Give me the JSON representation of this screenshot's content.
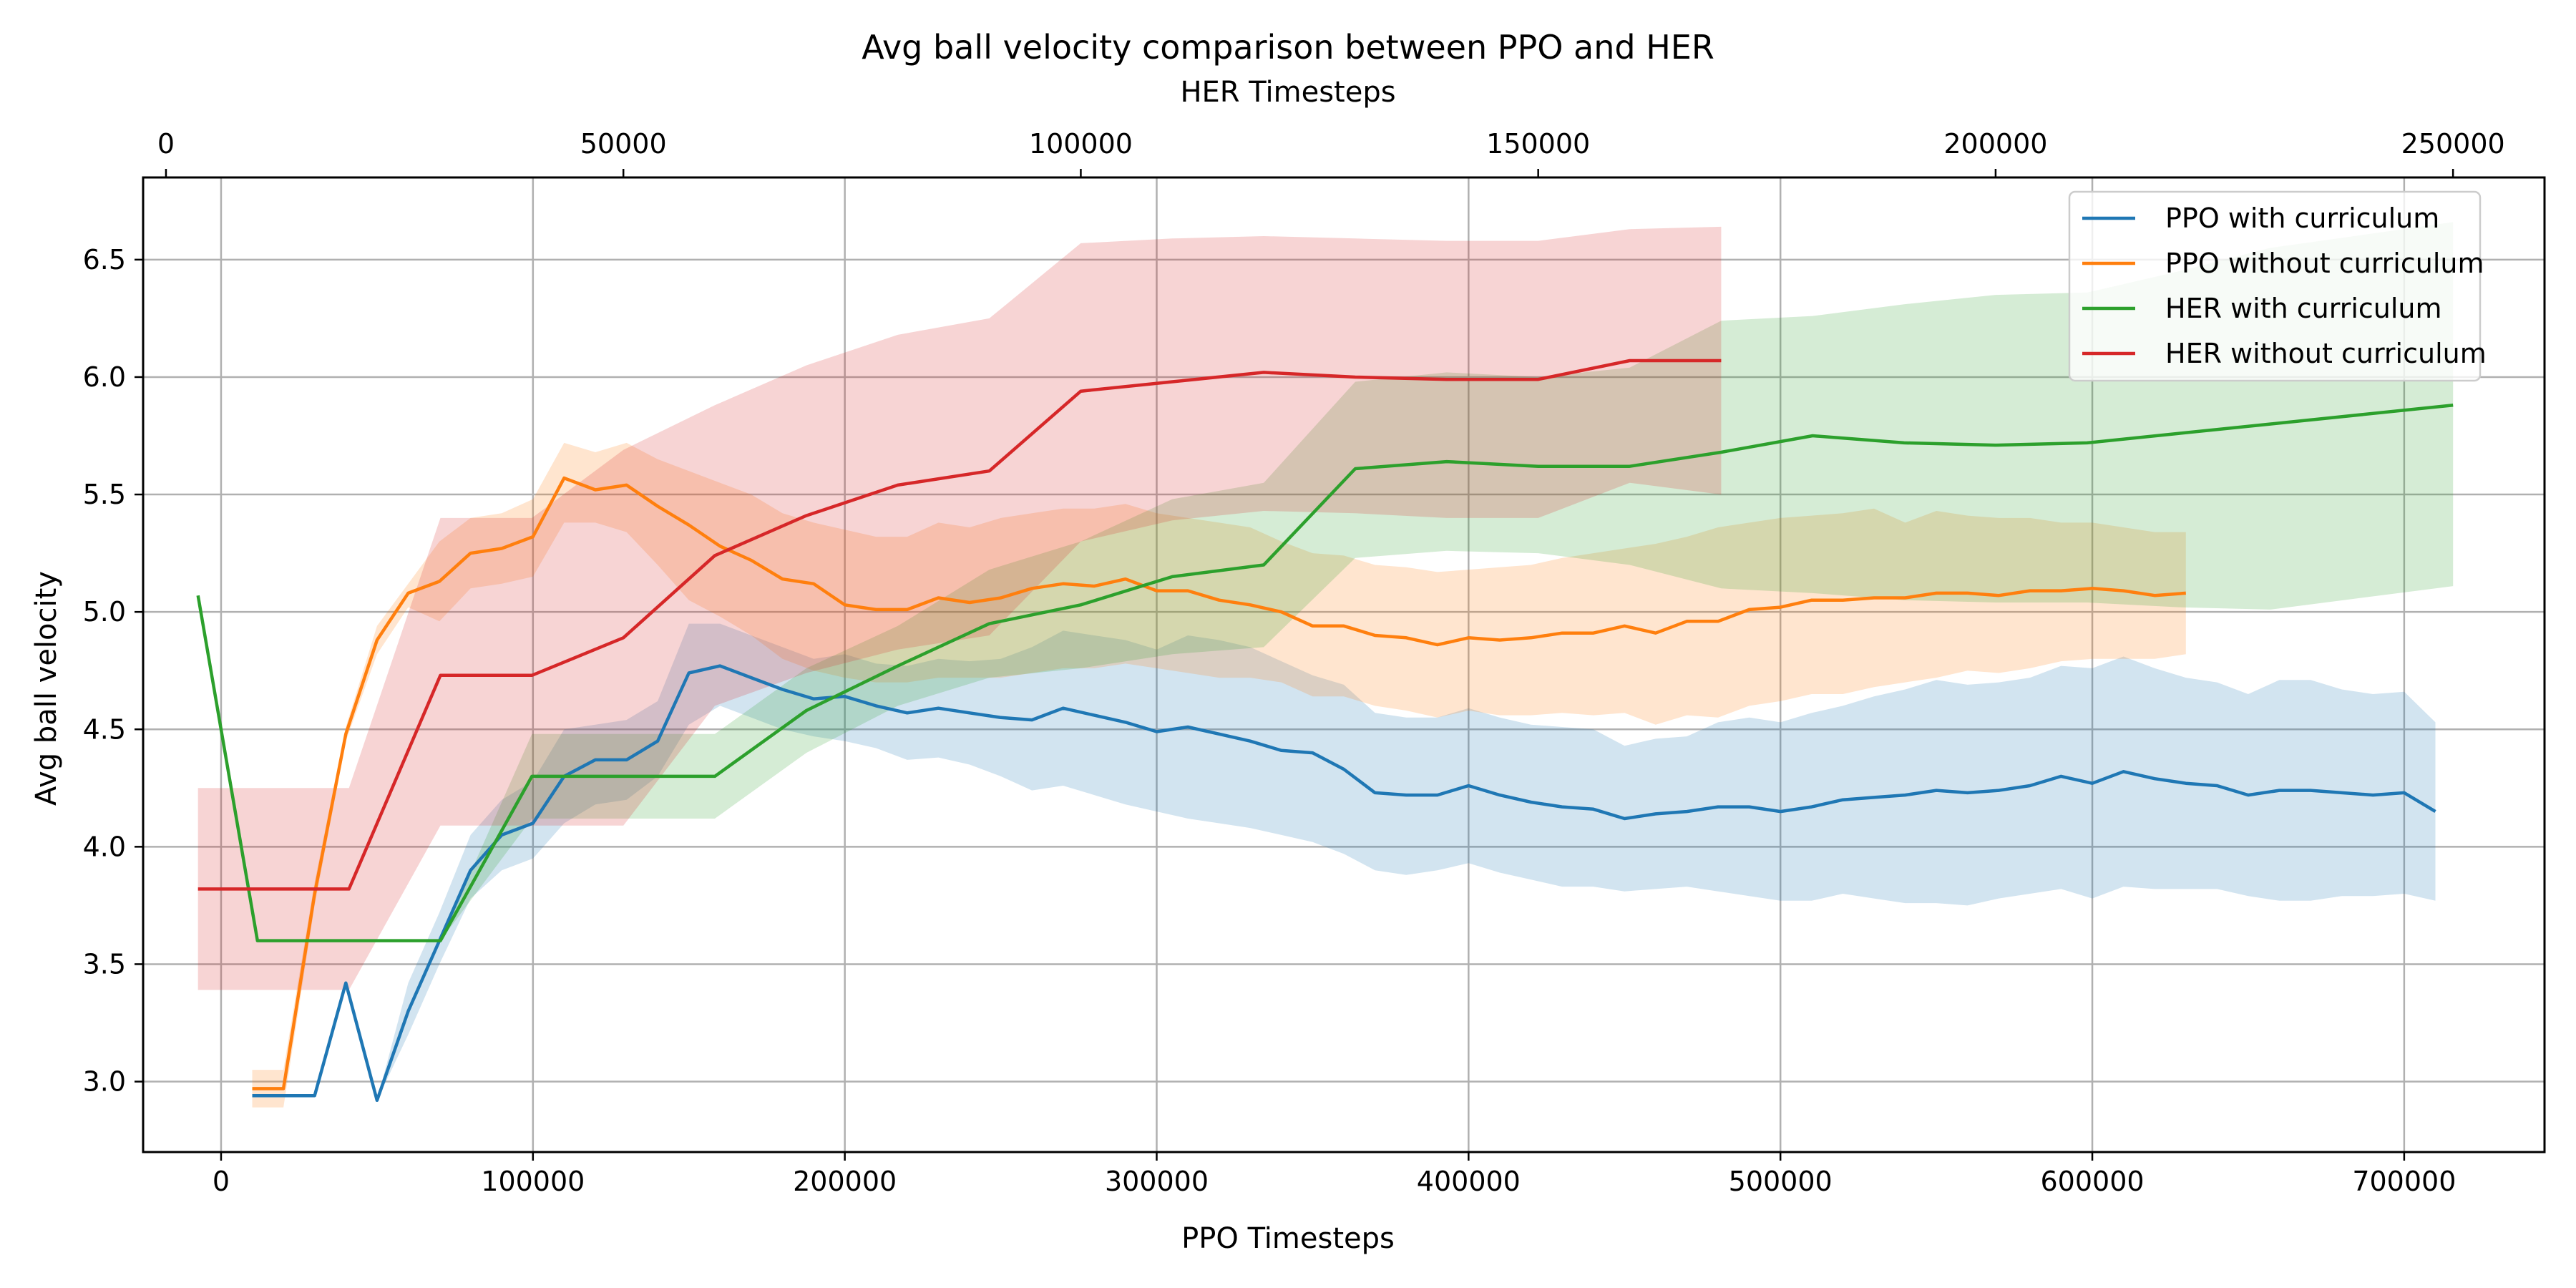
{
  "chart_data": {
    "type": "line",
    "title": "Avg ball velocity comparison between PPO and HER",
    "xlabel": "PPO Timesteps",
    "x2label": "HER Timesteps",
    "ylabel": "Avg ball velocity",
    "xlim": [
      -25000,
      745000
    ],
    "x2lim": [
      -2500,
      260000
    ],
    "ylim": [
      2.7,
      6.85
    ],
    "xticks": [
      0,
      100000,
      200000,
      300000,
      400000,
      500000,
      600000,
      700000
    ],
    "x2ticks": [
      0,
      50000,
      100000,
      150000,
      200000,
      250000
    ],
    "yticks": [
      3.0,
      3.5,
      4.0,
      4.5,
      5.0,
      5.5,
      6.0,
      6.5
    ],
    "ytick_labels": [
      "3.0",
      "3.5",
      "4.0",
      "4.5",
      "5.0",
      "5.5",
      "6.0",
      "6.5"
    ],
    "grid": true,
    "legend_position": "top-right",
    "series": [
      {
        "name": "PPO with curriculum",
        "color": "#1f77b4",
        "axis": "bottom",
        "x": [
          10000,
          20000,
          30000,
          40000,
          50000,
          60000,
          70000,
          80000,
          90000,
          100000,
          110000,
          120000,
          130000,
          140000,
          150000,
          160000,
          170000,
          180000,
          190000,
          200000,
          210000,
          220000,
          230000,
          240000,
          250000,
          260000,
          270000,
          280000,
          290000,
          300000,
          310000,
          320000,
          330000,
          340000,
          350000,
          360000,
          370000,
          380000,
          390000,
          400000,
          410000,
          420000,
          430000,
          440000,
          450000,
          460000,
          470000,
          480000,
          490000,
          500000,
          510000,
          520000,
          530000,
          540000,
          550000,
          560000,
          570000,
          580000,
          590000,
          600000,
          610000,
          620000,
          630000,
          640000,
          650000,
          660000,
          670000,
          680000,
          690000,
          700000,
          710000
        ],
        "y": [
          2.94,
          2.94,
          2.94,
          3.42,
          2.92,
          3.3,
          3.6,
          3.9,
          4.05,
          4.1,
          4.3,
          4.37,
          4.37,
          4.45,
          4.74,
          4.77,
          4.72,
          4.67,
          4.63,
          4.64,
          4.6,
          4.57,
          4.59,
          4.57,
          4.55,
          4.54,
          4.59,
          4.56,
          4.53,
          4.49,
          4.51,
          4.48,
          4.45,
          4.41,
          4.4,
          4.33,
          4.23,
          4.22,
          4.22,
          4.26,
          4.22,
          4.19,
          4.17,
          4.16,
          4.12,
          4.14,
          4.15,
          4.17,
          4.17,
          4.15,
          4.17,
          4.2,
          4.21,
          4.22,
          4.24,
          4.23,
          4.24,
          4.26,
          4.3,
          4.27,
          4.32,
          4.29,
          4.27,
          4.26,
          4.22,
          4.24,
          4.24,
          4.23,
          4.22,
          4.23,
          4.15
        ],
        "lower": [
          2.94,
          2.94,
          2.94,
          3.42,
          2.92,
          3.2,
          3.5,
          3.78,
          3.9,
          3.95,
          4.1,
          4.18,
          4.2,
          4.3,
          4.52,
          4.6,
          4.55,
          4.5,
          4.47,
          4.45,
          4.42,
          4.37,
          4.38,
          4.35,
          4.3,
          4.24,
          4.26,
          4.22,
          4.18,
          4.15,
          4.12,
          4.1,
          4.08,
          4.05,
          4.02,
          3.97,
          3.9,
          3.88,
          3.9,
          3.93,
          3.89,
          3.86,
          3.83,
          3.83,
          3.81,
          3.82,
          3.83,
          3.81,
          3.79,
          3.77,
          3.77,
          3.8,
          3.78,
          3.76,
          3.76,
          3.75,
          3.78,
          3.8,
          3.82,
          3.78,
          3.83,
          3.82,
          3.82,
          3.82,
          3.79,
          3.77,
          3.77,
          3.79,
          3.79,
          3.8,
          3.77
        ],
        "upper": [
          2.94,
          2.94,
          2.94,
          3.42,
          2.92,
          3.42,
          3.72,
          4.05,
          4.2,
          4.28,
          4.5,
          4.52,
          4.54,
          4.62,
          4.95,
          4.95,
          4.9,
          4.85,
          4.8,
          4.82,
          4.78,
          4.77,
          4.8,
          4.79,
          4.8,
          4.85,
          4.92,
          4.9,
          4.88,
          4.84,
          4.9,
          4.88,
          4.85,
          4.79,
          4.73,
          4.69,
          4.57,
          4.55,
          4.55,
          4.59,
          4.55,
          4.52,
          4.51,
          4.5,
          4.43,
          4.46,
          4.47,
          4.53,
          4.55,
          4.53,
          4.57,
          4.6,
          4.64,
          4.67,
          4.71,
          4.69,
          4.7,
          4.72,
          4.77,
          4.76,
          4.81,
          4.76,
          4.72,
          4.7,
          4.65,
          4.71,
          4.71,
          4.67,
          4.65,
          4.66,
          4.53
        ]
      },
      {
        "name": "PPO without curriculum",
        "color": "#ff7f0e",
        "axis": "bottom",
        "x": [
          10000,
          20000,
          30000,
          40000,
          50000,
          60000,
          70000,
          80000,
          90000,
          100000,
          110000,
          120000,
          130000,
          140000,
          150000,
          160000,
          170000,
          180000,
          190000,
          200000,
          210000,
          220000,
          230000,
          240000,
          250000,
          260000,
          270000,
          280000,
          290000,
          300000,
          310000,
          320000,
          330000,
          340000,
          350000,
          360000,
          370000,
          380000,
          390000,
          400000,
          410000,
          420000,
          430000,
          440000,
          450000,
          460000,
          470000,
          480000,
          490000,
          500000,
          510000,
          520000,
          530000,
          540000,
          550000,
          560000,
          570000,
          580000,
          590000,
          600000,
          610000,
          620000,
          630000
        ],
        "y": [
          2.97,
          2.97,
          3.8,
          4.48,
          4.88,
          5.08,
          5.13,
          5.25,
          5.27,
          5.32,
          5.57,
          5.52,
          5.54,
          5.45,
          5.37,
          5.28,
          5.22,
          5.14,
          5.12,
          5.03,
          5.01,
          5.01,
          5.06,
          5.04,
          5.06,
          5.1,
          5.12,
          5.11,
          5.14,
          5.09,
          5.09,
          5.05,
          5.03,
          5.0,
          4.94,
          4.94,
          4.9,
          4.89,
          4.86,
          4.89,
          4.88,
          4.89,
          4.91,
          4.91,
          4.94,
          4.91,
          4.96,
          4.96,
          5.01,
          5.02,
          5.05,
          5.05,
          5.06,
          5.06,
          5.08,
          5.08,
          5.07,
          5.09,
          5.09,
          5.1,
          5.09,
          5.07,
          5.08
        ],
        "lower": [
          2.89,
          2.89,
          3.75,
          4.45,
          4.82,
          5.02,
          4.96,
          5.1,
          5.12,
          5.15,
          5.38,
          5.38,
          5.34,
          5.2,
          5.05,
          4.98,
          4.9,
          4.8,
          4.75,
          4.72,
          4.7,
          4.7,
          4.72,
          4.72,
          4.72,
          4.74,
          4.76,
          4.76,
          4.78,
          4.76,
          4.74,
          4.72,
          4.72,
          4.7,
          4.64,
          4.64,
          4.6,
          4.58,
          4.55,
          4.58,
          4.56,
          4.56,
          4.57,
          4.56,
          4.57,
          4.52,
          4.56,
          4.55,
          4.6,
          4.62,
          4.65,
          4.65,
          4.68,
          4.7,
          4.72,
          4.75,
          4.74,
          4.76,
          4.79,
          4.8,
          4.8,
          4.8,
          4.82
        ],
        "upper": [
          3.05,
          3.05,
          3.85,
          4.51,
          4.94,
          5.12,
          5.3,
          5.4,
          5.42,
          5.48,
          5.72,
          5.68,
          5.72,
          5.65,
          5.6,
          5.55,
          5.5,
          5.42,
          5.38,
          5.35,
          5.32,
          5.32,
          5.38,
          5.36,
          5.4,
          5.42,
          5.44,
          5.44,
          5.46,
          5.42,
          5.4,
          5.38,
          5.36,
          5.3,
          5.25,
          5.24,
          5.2,
          5.19,
          5.17,
          5.18,
          5.19,
          5.2,
          5.23,
          5.25,
          5.27,
          5.29,
          5.32,
          5.36,
          5.38,
          5.4,
          5.41,
          5.42,
          5.44,
          5.38,
          5.43,
          5.41,
          5.4,
          5.4,
          5.38,
          5.38,
          5.36,
          5.34,
          5.34
        ]
      },
      {
        "name": "HER with curriculum",
        "color": "#2ca02c",
        "axis": "top",
        "x": [
          3500,
          10000,
          20000,
          30000,
          40000,
          50000,
          60000,
          70000,
          80000,
          90000,
          100000,
          110000,
          120000,
          130000,
          140000,
          150000,
          160000,
          170000,
          180000,
          190000,
          200000,
          210000,
          220000,
          230000,
          250000
        ],
        "y": [
          5.07,
          3.6,
          3.6,
          3.6,
          4.3,
          4.3,
          4.3,
          4.58,
          4.77,
          4.95,
          5.03,
          5.15,
          5.2,
          5.61,
          5.64,
          5.62,
          5.62,
          5.68,
          5.75,
          5.72,
          5.71,
          5.72,
          5.76,
          5.8,
          5.88
        ],
        "lower": [
          5.07,
          3.6,
          3.6,
          3.6,
          4.12,
          4.12,
          4.12,
          4.4,
          4.6,
          4.72,
          4.76,
          4.82,
          4.85,
          5.23,
          5.26,
          5.25,
          5.2,
          5.1,
          5.08,
          5.05,
          5.04,
          5.04,
          5.02,
          5.01,
          5.11
        ],
        "upper": [
          5.07,
          3.6,
          3.6,
          3.6,
          4.48,
          4.48,
          4.48,
          4.76,
          4.94,
          5.18,
          5.3,
          5.48,
          5.55,
          5.98,
          6.02,
          6.0,
          6.04,
          6.24,
          6.26,
          6.31,
          6.35,
          6.36,
          6.45,
          6.55,
          6.66
        ]
      },
      {
        "name": "HER without curriculum",
        "color": "#d62728",
        "axis": "top",
        "x": [
          3500,
          10000,
          20000,
          30000,
          40000,
          50000,
          60000,
          70000,
          80000,
          90000,
          100000,
          110000,
          120000,
          130000,
          140000,
          150000,
          160000,
          170000
        ],
        "y": [
          3.82,
          3.82,
          3.82,
          4.73,
          4.73,
          4.89,
          5.24,
          5.41,
          5.54,
          5.6,
          5.94,
          5.98,
          6.02,
          6.0,
          5.99,
          5.99,
          6.07,
          6.07
        ],
        "lower": [
          3.39,
          3.39,
          3.39,
          4.09,
          4.09,
          4.09,
          4.6,
          4.74,
          4.84,
          4.9,
          5.3,
          5.39,
          5.43,
          5.42,
          5.4,
          5.4,
          5.55,
          5.5
        ],
        "upper": [
          4.25,
          4.25,
          4.25,
          5.4,
          5.4,
          5.69,
          5.88,
          6.05,
          6.18,
          6.25,
          6.57,
          6.59,
          6.6,
          6.59,
          6.58,
          6.58,
          6.63,
          6.64
        ]
      }
    ]
  }
}
